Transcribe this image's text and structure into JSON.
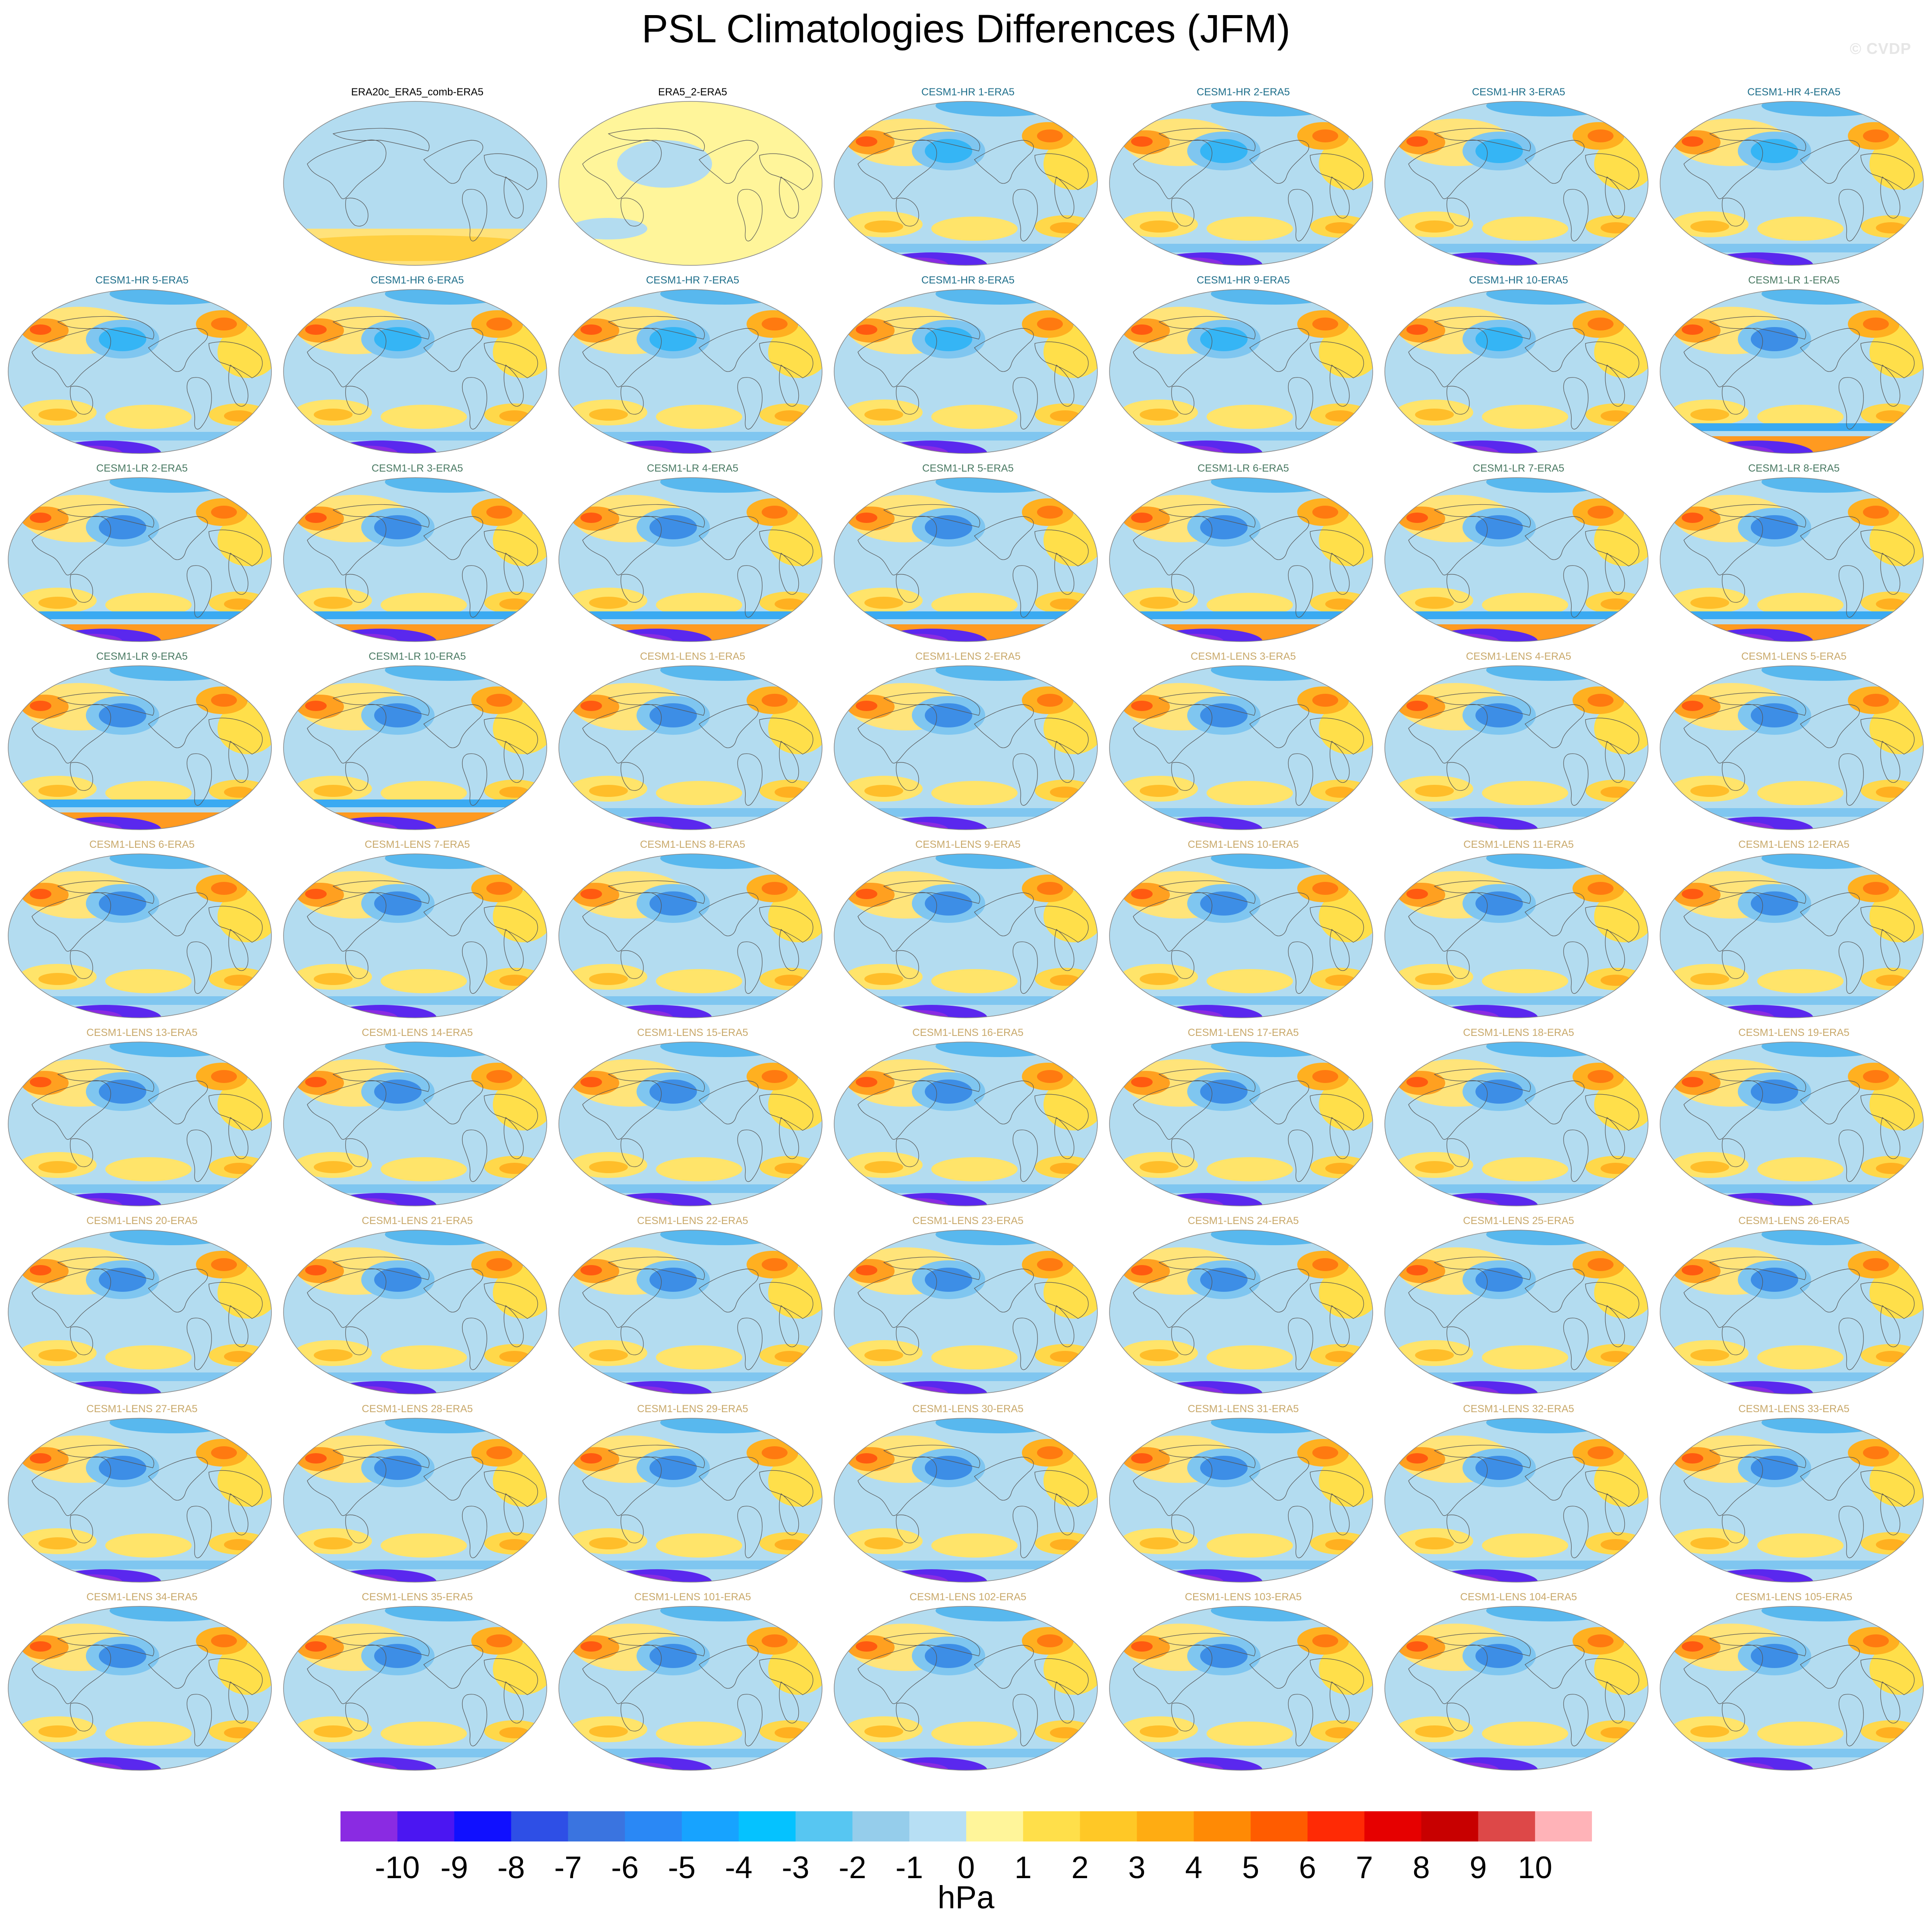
{
  "figure": {
    "title": "PSL Climatologies Differences (JFM)",
    "watermark": "© CVDP"
  },
  "colors": {
    "title_dark": "#000000",
    "title_hr": "#1f6f8b",
    "title_lr": "#4a7a63",
    "title_lens": "#c9a96b",
    "ocean_light_blue": "#b3dcf0",
    "land_yellow": "#fff59a",
    "coast": "#555555"
  },
  "panels": [
    {
      "label": "ERA20c_ERA5_comb-ERA5",
      "group": "ref"
    },
    {
      "label": "ERA5_2-ERA5",
      "group": "ref"
    },
    {
      "label": "CESM1-HR 1-ERA5",
      "group": "hr"
    },
    {
      "label": "CESM1-HR 2-ERA5",
      "group": "hr"
    },
    {
      "label": "CESM1-HR 3-ERA5",
      "group": "hr"
    },
    {
      "label": "CESM1-HR 4-ERA5",
      "group": "hr"
    },
    {
      "label": "CESM1-HR 5-ERA5",
      "group": "hr"
    },
    {
      "label": "CESM1-HR 6-ERA5",
      "group": "hr"
    },
    {
      "label": "CESM1-HR 7-ERA5",
      "group": "hr"
    },
    {
      "label": "CESM1-HR 8-ERA5",
      "group": "hr"
    },
    {
      "label": "CESM1-HR 9-ERA5",
      "group": "hr"
    },
    {
      "label": "CESM1-HR 10-ERA5",
      "group": "hr"
    },
    {
      "label": "CESM1-LR 1-ERA5",
      "group": "lr"
    },
    {
      "label": "CESM1-LR 2-ERA5",
      "group": "lr"
    },
    {
      "label": "CESM1-LR 3-ERA5",
      "group": "lr"
    },
    {
      "label": "CESM1-LR 4-ERA5",
      "group": "lr"
    },
    {
      "label": "CESM1-LR 5-ERA5",
      "group": "lr"
    },
    {
      "label": "CESM1-LR 6-ERA5",
      "group": "lr"
    },
    {
      "label": "CESM1-LR 7-ERA5",
      "group": "lr"
    },
    {
      "label": "CESM1-LR 8-ERA5",
      "group": "lr"
    },
    {
      "label": "CESM1-LR 9-ERA5",
      "group": "lr"
    },
    {
      "label": "CESM1-LR 10-ERA5",
      "group": "lr"
    },
    {
      "label": "CESM1-LENS 1-ERA5",
      "group": "lens"
    },
    {
      "label": "CESM1-LENS 2-ERA5",
      "group": "lens"
    },
    {
      "label": "CESM1-LENS 3-ERA5",
      "group": "lens"
    },
    {
      "label": "CESM1-LENS 4-ERA5",
      "group": "lens"
    },
    {
      "label": "CESM1-LENS 5-ERA5",
      "group": "lens"
    },
    {
      "label": "CESM1-LENS 6-ERA5",
      "group": "lens"
    },
    {
      "label": "CESM1-LENS 7-ERA5",
      "group": "lens"
    },
    {
      "label": "CESM1-LENS 8-ERA5",
      "group": "lens"
    },
    {
      "label": "CESM1-LENS 9-ERA5",
      "group": "lens"
    },
    {
      "label": "CESM1-LENS 10-ERA5",
      "group": "lens"
    },
    {
      "label": "CESM1-LENS 11-ERA5",
      "group": "lens"
    },
    {
      "label": "CESM1-LENS 12-ERA5",
      "group": "lens"
    },
    {
      "label": "CESM1-LENS 13-ERA5",
      "group": "lens"
    },
    {
      "label": "CESM1-LENS 14-ERA5",
      "group": "lens"
    },
    {
      "label": "CESM1-LENS 15-ERA5",
      "group": "lens"
    },
    {
      "label": "CESM1-LENS 16-ERA5",
      "group": "lens"
    },
    {
      "label": "CESM1-LENS 17-ERA5",
      "group": "lens"
    },
    {
      "label": "CESM1-LENS 18-ERA5",
      "group": "lens"
    },
    {
      "label": "CESM1-LENS 19-ERA5",
      "group": "lens"
    },
    {
      "label": "CESM1-LENS 20-ERA5",
      "group": "lens"
    },
    {
      "label": "CESM1-LENS 21-ERA5",
      "group": "lens"
    },
    {
      "label": "CESM1-LENS 22-ERA5",
      "group": "lens"
    },
    {
      "label": "CESM1-LENS 23-ERA5",
      "group": "lens"
    },
    {
      "label": "CESM1-LENS 24-ERA5",
      "group": "lens"
    },
    {
      "label": "CESM1-LENS 25-ERA5",
      "group": "lens"
    },
    {
      "label": "CESM1-LENS 26-ERA5",
      "group": "lens"
    },
    {
      "label": "CESM1-LENS 27-ERA5",
      "group": "lens"
    },
    {
      "label": "CESM1-LENS 28-ERA5",
      "group": "lens"
    },
    {
      "label": "CESM1-LENS 29-ERA5",
      "group": "lens"
    },
    {
      "label": "CESM1-LENS 30-ERA5",
      "group": "lens"
    },
    {
      "label": "CESM1-LENS 31-ERA5",
      "group": "lens"
    },
    {
      "label": "CESM1-LENS 32-ERA5",
      "group": "lens"
    },
    {
      "label": "CESM1-LENS 33-ERA5",
      "group": "lens"
    },
    {
      "label": "CESM1-LENS 34-ERA5",
      "group": "lens"
    },
    {
      "label": "CESM1-LENS 35-ERA5",
      "group": "lens"
    },
    {
      "label": "CESM1-LENS 101-ERA5",
      "group": "lens"
    },
    {
      "label": "CESM1-LENS 102-ERA5",
      "group": "lens"
    },
    {
      "label": "CESM1-LENS 103-ERA5",
      "group": "lens"
    },
    {
      "label": "CESM1-LENS 104-ERA5",
      "group": "lens"
    },
    {
      "label": "CESM1-LENS 105-ERA5",
      "group": "lens"
    }
  ],
  "colorbar": {
    "unit": "hPa",
    "tick_labels": [
      "-10",
      "-9",
      "-8",
      "-7",
      "-6",
      "-5",
      "-4",
      "-3",
      "-2",
      "-1",
      "0",
      "1",
      "2",
      "3",
      "4",
      "5",
      "6",
      "7",
      "8",
      "9",
      "10"
    ],
    "colors": [
      "#8a2be2",
      "#4b16f2",
      "#1010ff",
      "#2e4fe6",
      "#3a74e0",
      "#2a88f5",
      "#17a3ff",
      "#05c2ff",
      "#57c6f2",
      "#95cdeb",
      "#b7dff4",
      "#fff59a",
      "#ffdf4a",
      "#ffc826",
      "#ffac12",
      "#ff8a05",
      "#ff5c00",
      "#ff2a05",
      "#e60000",
      "#c80000",
      "#dd4848",
      "#ffb3b8"
    ]
  }
}
